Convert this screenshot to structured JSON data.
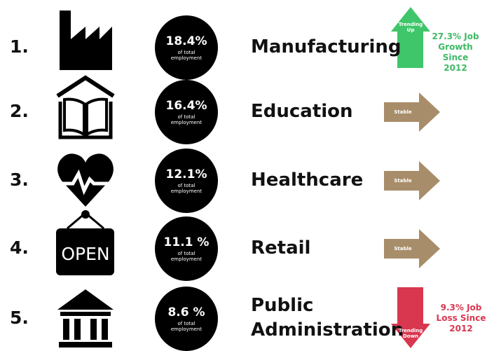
{
  "rows": [
    {
      "rank": "1.",
      "share": "18.4%",
      "share_note": "of total employment",
      "sector": "Manufacturing",
      "trend": {
        "direction": "up",
        "color": "#3fc66a",
        "label": "Trending Up"
      },
      "note": "27.3% Job Growth Since 2012",
      "note_color": "#3fb866"
    },
    {
      "rank": "2.",
      "share": "16.4%",
      "share_note": "of total employment",
      "sector": "Education",
      "trend": {
        "direction": "stable",
        "color": "#a88d6a",
        "label": "Stable"
      }
    },
    {
      "rank": "3.",
      "share": "12.1%",
      "share_note": "of total employment",
      "sector": "Healthcare",
      "trend": {
        "direction": "stable",
        "color": "#a88d6a",
        "label": "Stable"
      }
    },
    {
      "rank": "4.",
      "share": "11.1 %",
      "share_note": "of total employment",
      "sector": "Retail",
      "trend": {
        "direction": "stable",
        "color": "#a88d6a",
        "label": "Stable"
      },
      "sign": "OPEN"
    },
    {
      "rank": "5.",
      "share": "8.6 %",
      "share_note": "of total employment",
      "sector": "Public Administration",
      "trend": {
        "direction": "down",
        "color": "#d8374f",
        "label": "Trending Down"
      },
      "note": "9.3% Job Loss Since 2012",
      "note_color": "#d8374f"
    }
  ]
}
